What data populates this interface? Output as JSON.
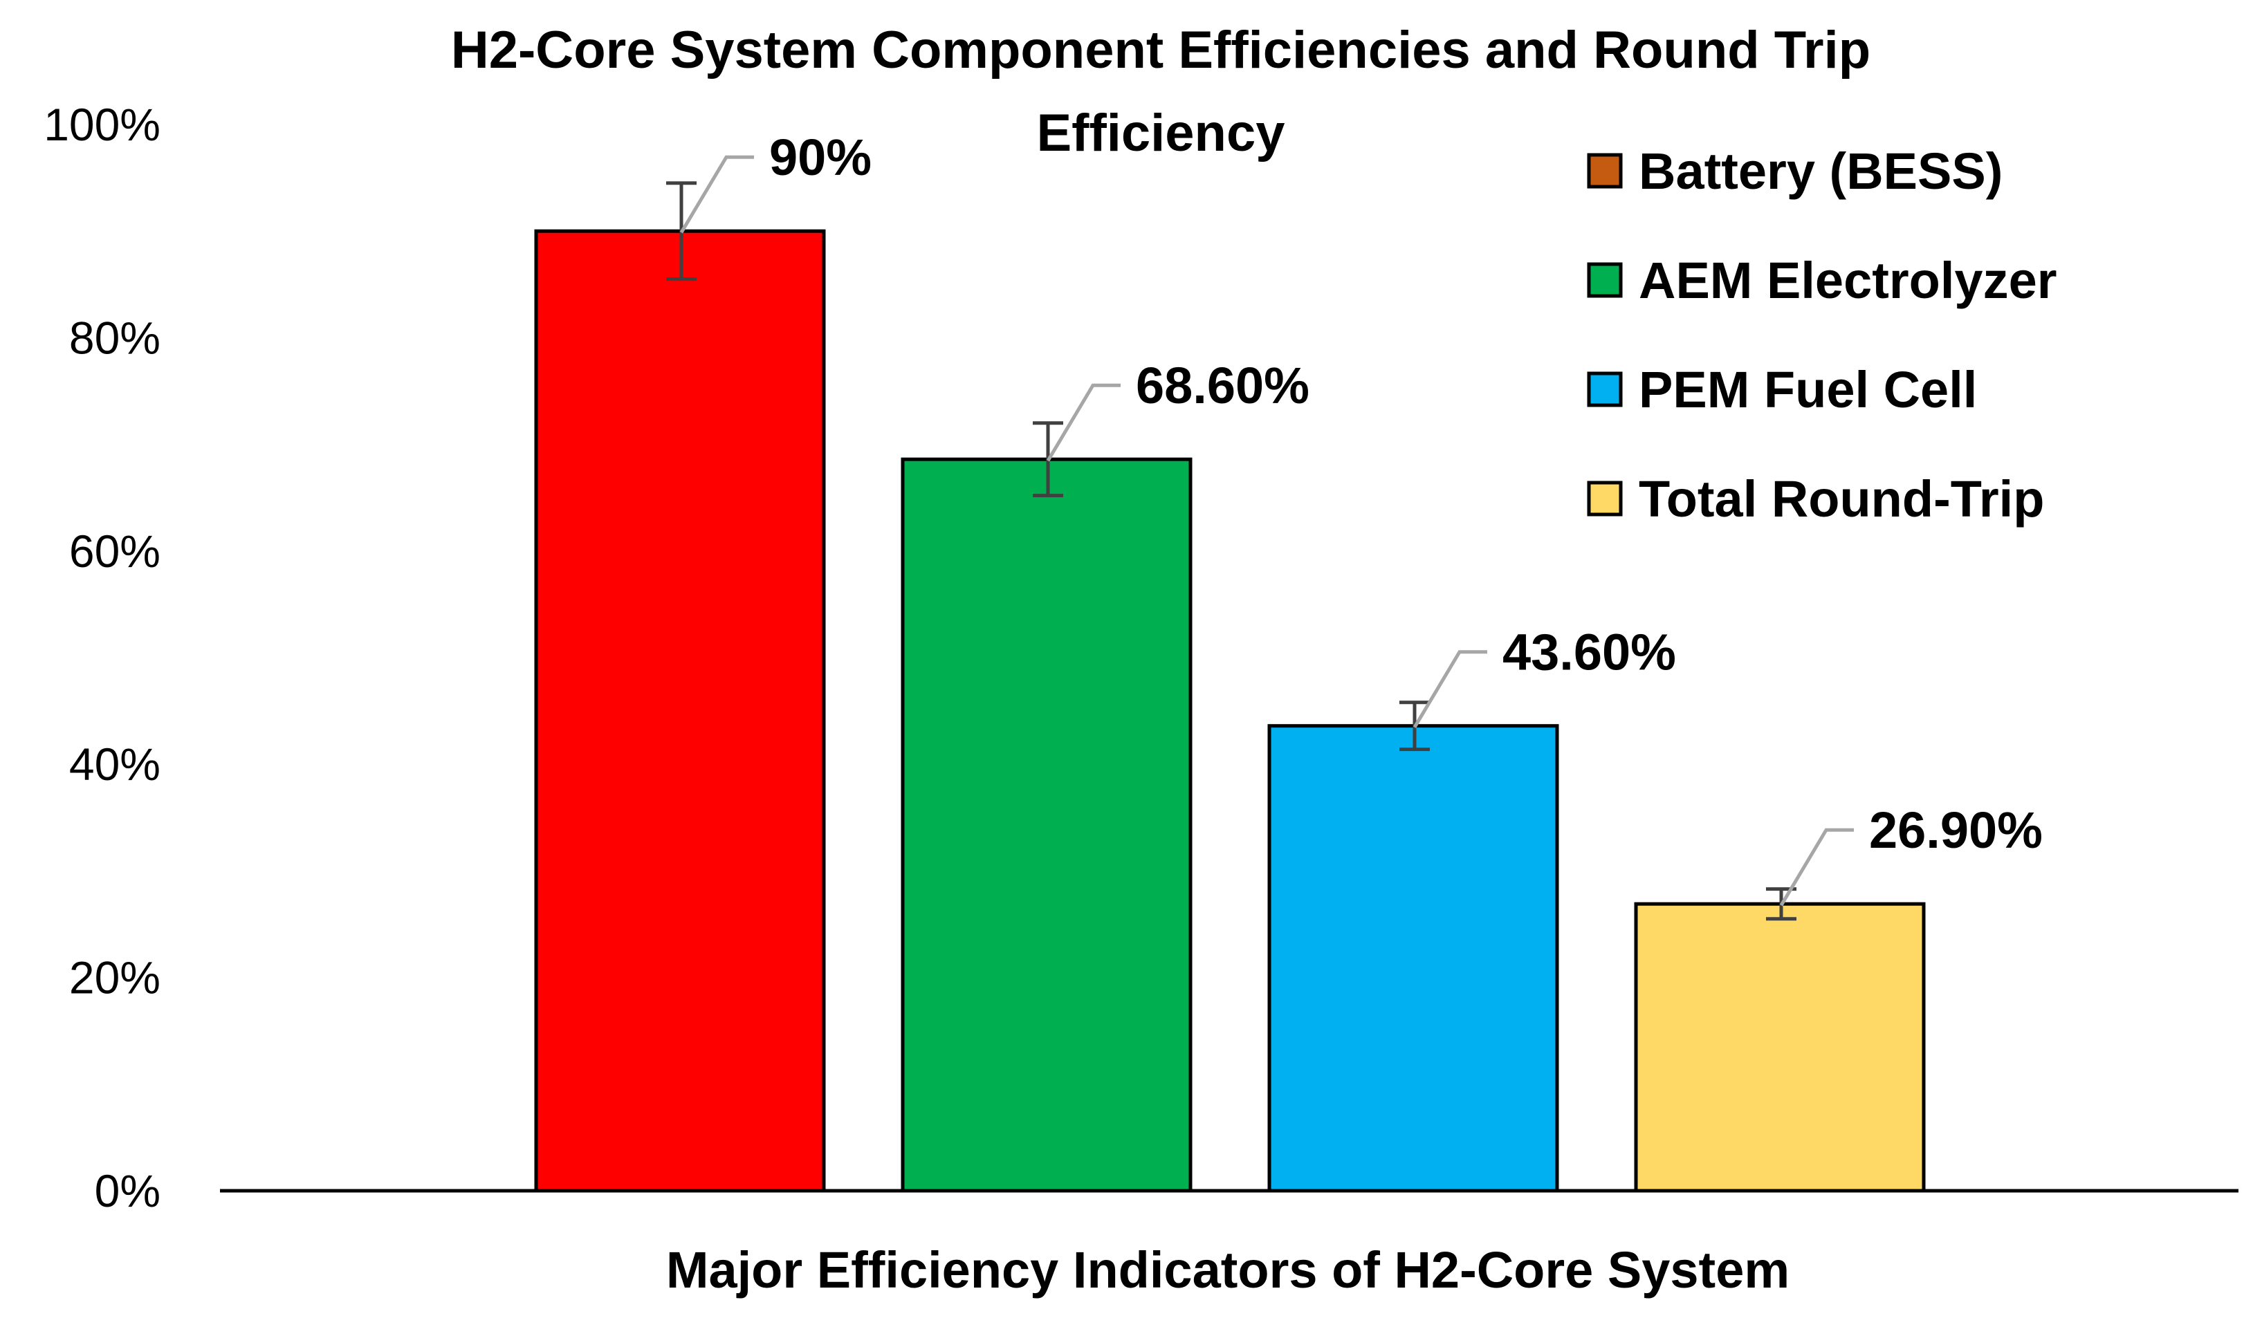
{
  "chart_data": {
    "type": "bar",
    "title": "H2-Core System Component Efficiencies and Round Trip Efficiency",
    "title_lines": [
      "H2-Core System Component Efficiencies and Round Trip",
      "Efficiency"
    ],
    "xlabel": "Major Efficiency Indicators of H2-Core System",
    "ylabel": "",
    "ylim": [
      0,
      100
    ],
    "yticks": [
      0,
      20,
      40,
      60,
      80,
      100
    ],
    "ytick_labels": [
      "0%",
      "20%",
      "40%",
      "60%",
      "80%",
      "100%"
    ],
    "grid": false,
    "legend_position": "top-right",
    "series": [
      {
        "name": "Battery (BESS)",
        "value": 90,
        "label": "90%",
        "error": 4.5,
        "color": "#FF0000",
        "legend_color": "#C55A11"
      },
      {
        "name": "AEM Electrolyzer",
        "value": 68.6,
        "label": "68.60%",
        "error": 3.4,
        "color": "#00B050",
        "legend_color": "#00B050"
      },
      {
        "name": "PEM Fuel Cell",
        "value": 43.6,
        "label": "43.60%",
        "error": 2.2,
        "color": "#00B0F0",
        "legend_color": "#00B0F0"
      },
      {
        "name": "Total Round-Trip",
        "value": 26.9,
        "label": "26.90%",
        "error": 1.4,
        "color": "#FFD966",
        "legend_color": "#FFD966"
      }
    ]
  }
}
